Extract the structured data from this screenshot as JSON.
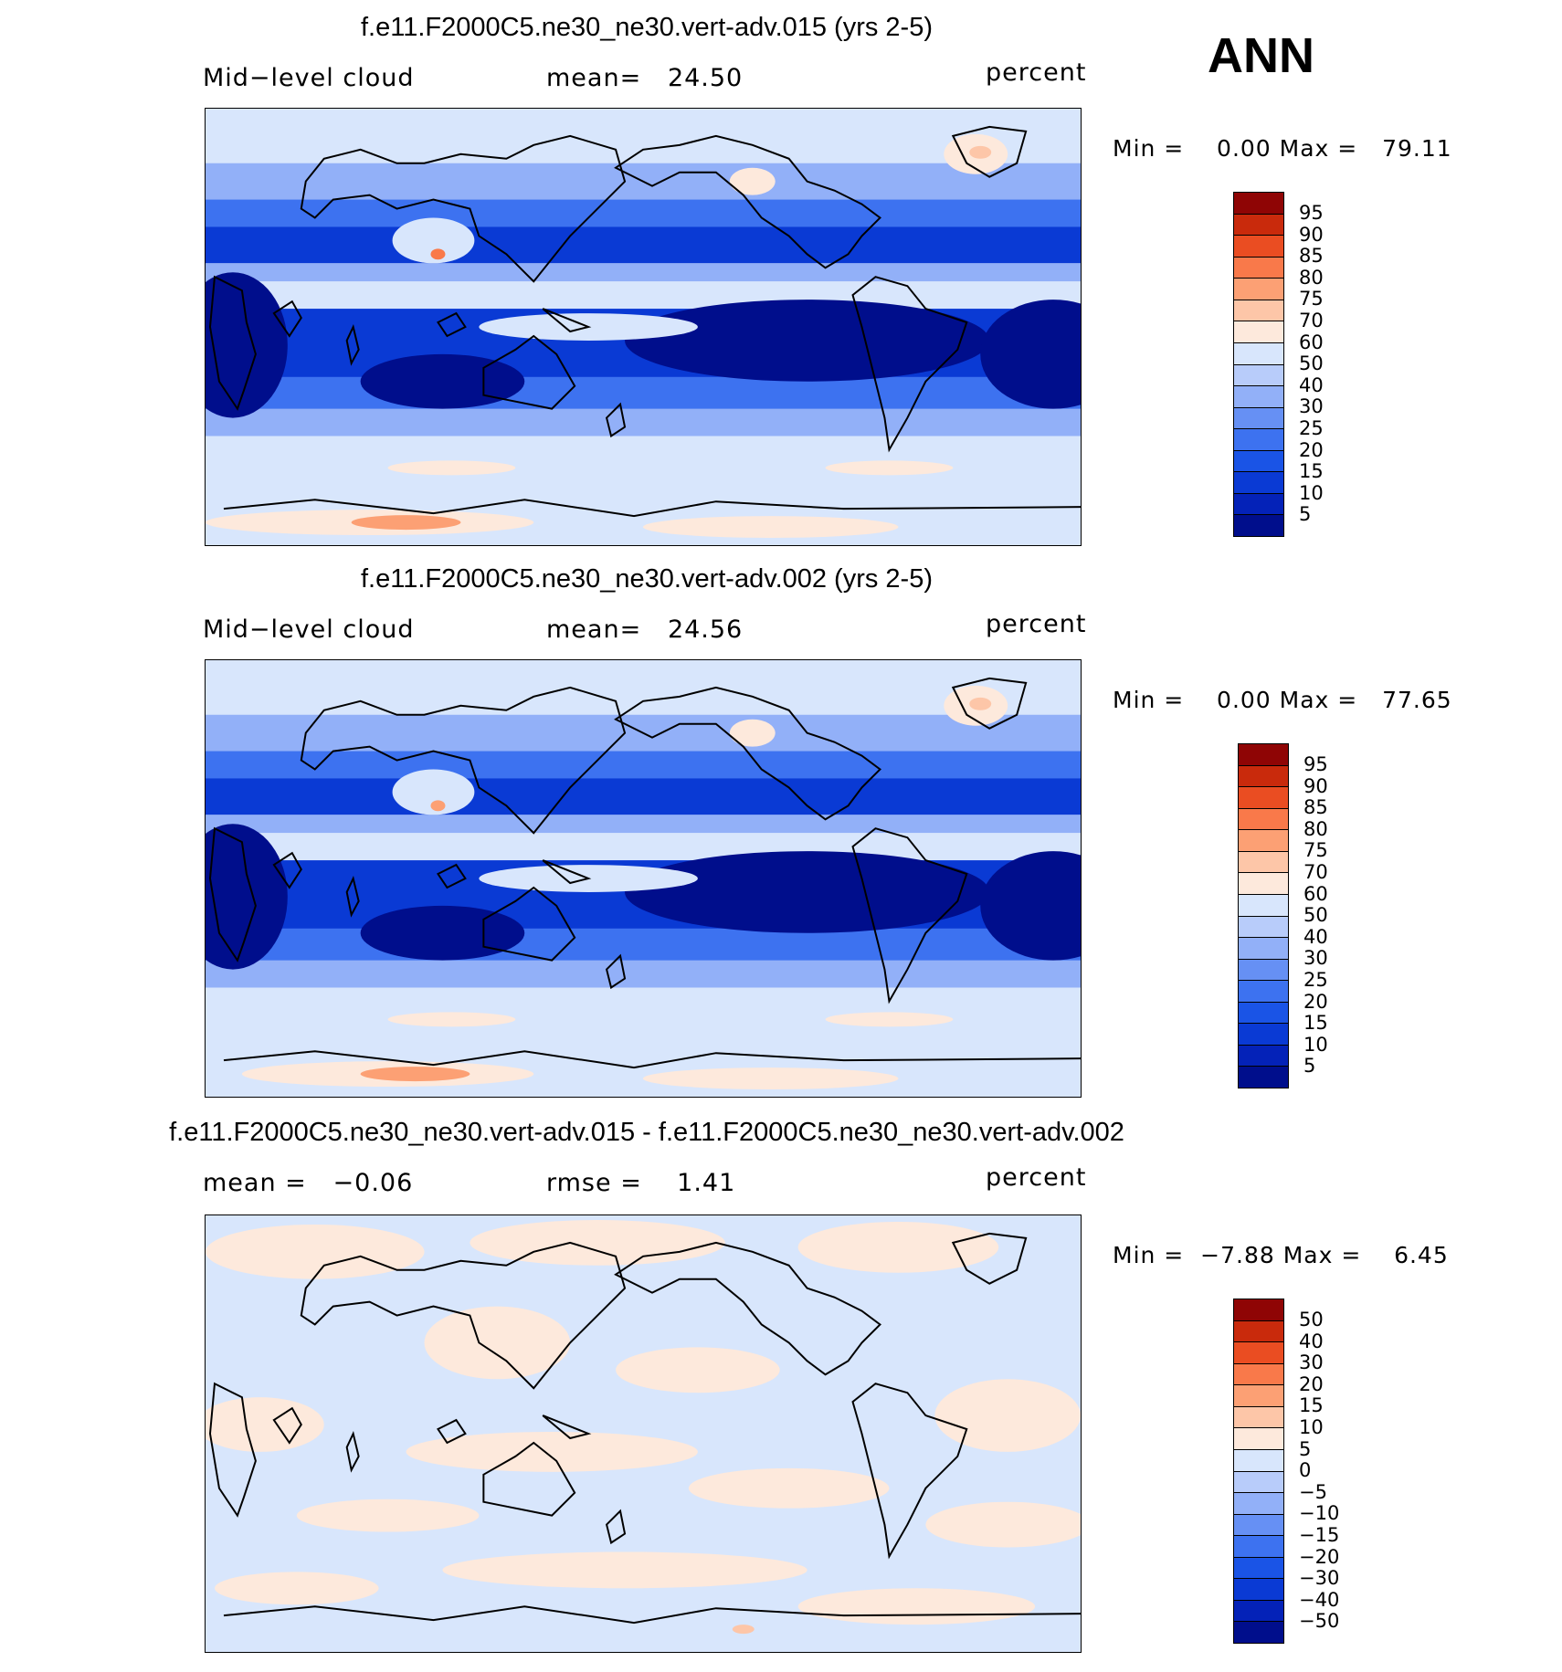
{
  "season": "ANN",
  "colors": {
    "abs": [
      "#000e8c",
      "#0422b8",
      "#0a3ad4",
      "#1a54e6",
      "#3d72f0",
      "#6690f4",
      "#92b0f8",
      "#b8ccfa",
      "#d8e6fc",
      "#fde9dc",
      "#fdc6a8",
      "#fca074",
      "#f9794a",
      "#ea4d22",
      "#c92a0c",
      "#8f0505"
    ],
    "diff": [
      "#000e8c",
      "#0422b8",
      "#0a3ad4",
      "#1a54e6",
      "#3d72f0",
      "#6690f4",
      "#92b0f8",
      "#b8ccfa",
      "#d8e6fc",
      "#fde9dc",
      "#fdc6a8",
      "#fca074",
      "#f9794a",
      "#ea4d22",
      "#c92a0c",
      "#8f0505"
    ]
  },
  "panels": [
    {
      "title": "f.e11.F2000C5.ne30_ne30.vert-adv.015 (yrs 2-5)",
      "left_label": "Mid−level cloud",
      "mid_label": "mean=   24.50",
      "units": "percent",
      "minmax": "Min =    0.00 Max =   79.11",
      "levels": [
        "95",
        "90",
        "85",
        "80",
        "75",
        "70",
        "60",
        "50",
        "40",
        "30",
        "25",
        "20",
        "15",
        "10",
        "5"
      ],
      "scale": "abs"
    },
    {
      "title": "f.e11.F2000C5.ne30_ne30.vert-adv.002 (yrs 2-5)",
      "left_label": "Mid−level cloud",
      "mid_label": "mean=   24.56",
      "units": "percent",
      "minmax": "Min =    0.00 Max =   77.65",
      "levels": [
        "95",
        "90",
        "85",
        "80",
        "75",
        "70",
        "60",
        "50",
        "40",
        "30",
        "25",
        "20",
        "15",
        "10",
        "5"
      ],
      "scale": "abs"
    },
    {
      "title": "f.e11.F2000C5.ne30_ne30.vert-adv.015 - f.e11.F2000C5.ne30_ne30.vert-adv.002",
      "left_label": "mean =   −0.06",
      "mid_label": "rmse =    1.41",
      "units": "percent",
      "minmax": "Min =  −7.88 Max =    6.45",
      "levels": [
        "50",
        "40",
        "30",
        "20",
        "15",
        "10",
        "5",
        "0",
        "−5",
        "−10",
        "−15",
        "−20",
        "−30",
        "−40",
        "−50"
      ],
      "scale": "diff"
    }
  ]
}
